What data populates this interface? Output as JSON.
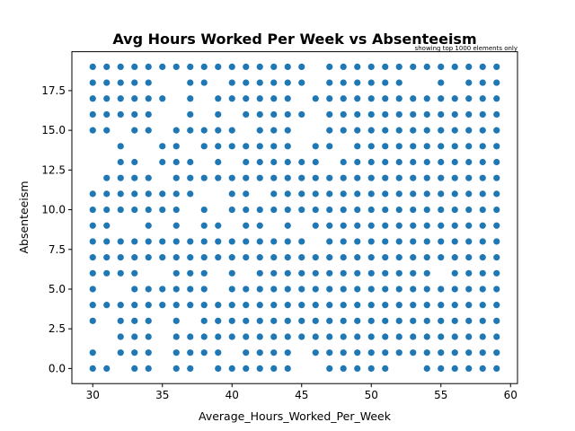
{
  "chart_data": {
    "type": "scatter",
    "title": "Avg Hours Worked Per Week vs Absenteeism",
    "annotation": "showing top 1000 elements only",
    "xlabel": "Average_Hours_Worked_Per_Week",
    "ylabel": "Absenteeism",
    "xlim": [
      28.5,
      60.5
    ],
    "ylim": [
      -0.95,
      19.95
    ],
    "xticks": [
      30,
      35,
      40,
      45,
      50,
      55,
      60
    ],
    "xtick_labels": [
      "30",
      "35",
      "40",
      "45",
      "50",
      "55",
      "60"
    ],
    "yticks": [
      0,
      2.5,
      5,
      7.5,
      10,
      12.5,
      15,
      17.5
    ],
    "ytick_labels": [
      "0.0",
      "2.5",
      "5.0",
      "7.5",
      "10.0",
      "12.5",
      "15.0",
      "17.5"
    ],
    "grid": false,
    "marker_color": "#1f77b4",
    "series": [
      {
        "points_by_hour": {
          "30": [
            0,
            1,
            3,
            4,
            5,
            6,
            7,
            8,
            9,
            10,
            11,
            15,
            16,
            17,
            18,
            19
          ],
          "31": [
            0,
            4,
            6,
            7,
            8,
            9,
            10,
            11,
            12,
            15,
            16,
            17,
            18,
            19
          ],
          "32": [
            1,
            2,
            3,
            4,
            6,
            7,
            8,
            10,
            11,
            12,
            13,
            14,
            16,
            17,
            18,
            19
          ],
          "33": [
            0,
            1,
            2,
            3,
            4,
            5,
            6,
            7,
            8,
            10,
            11,
            12,
            13,
            15,
            16,
            17,
            18,
            19
          ],
          "34": [
            0,
            1,
            2,
            3,
            4,
            5,
            7,
            8,
            9,
            10,
            11,
            12,
            15,
            16,
            17,
            18,
            19
          ],
          "35": [
            4,
            5,
            7,
            8,
            10,
            11,
            13,
            14,
            17,
            19
          ],
          "36": [
            0,
            1,
            2,
            3,
            4,
            5,
            6,
            7,
            8,
            9,
            10,
            11,
            12,
            13,
            14,
            15,
            19
          ],
          "37": [
            0,
            1,
            2,
            4,
            5,
            6,
            7,
            8,
            11,
            12,
            13,
            15,
            16,
            17,
            18,
            19
          ],
          "38": [
            1,
            2,
            3,
            4,
            5,
            6,
            7,
            8,
            9,
            10,
            12,
            14,
            15,
            18,
            19
          ],
          "39": [
            0,
            1,
            2,
            3,
            4,
            7,
            8,
            9,
            12,
            13,
            14,
            15,
            16,
            17,
            19
          ],
          "40": [
            0,
            2,
            3,
            4,
            5,
            6,
            7,
            8,
            10,
            11,
            12,
            14,
            15,
            17,
            18,
            19
          ],
          "41": [
            0,
            1,
            2,
            3,
            4,
            5,
            7,
            8,
            9,
            10,
            11,
            12,
            13,
            14,
            16,
            17,
            18,
            19
          ],
          "42": [
            0,
            1,
            2,
            3,
            4,
            5,
            6,
            7,
            8,
            9,
            10,
            12,
            13,
            14,
            15,
            16,
            17,
            18,
            19
          ],
          "43": [
            0,
            1,
            2,
            3,
            4,
            5,
            6,
            7,
            8,
            10,
            11,
            12,
            13,
            14,
            15,
            16,
            17,
            18,
            19
          ],
          "44": [
            0,
            1,
            2,
            3,
            4,
            5,
            6,
            7,
            8,
            9,
            10,
            11,
            12,
            13,
            14,
            15,
            16,
            17,
            18,
            19
          ],
          "45": [
            2,
            3,
            4,
            5,
            6,
            7,
            8,
            10,
            11,
            12,
            13,
            16,
            18,
            19
          ],
          "46": [
            1,
            2,
            3,
            4,
            5,
            6,
            7,
            9,
            10,
            11,
            12,
            13,
            14,
            17
          ],
          "47": [
            0,
            1,
            2,
            3,
            4,
            5,
            6,
            7,
            8,
            9,
            10,
            11,
            12,
            14,
            15,
            16,
            17,
            18,
            19
          ],
          "48": [
            0,
            1,
            2,
            3,
            4,
            5,
            6,
            7,
            8,
            9,
            10,
            11,
            12,
            13,
            15,
            16,
            17,
            18,
            19
          ],
          "49": [
            0,
            1,
            2,
            3,
            4,
            5,
            6,
            7,
            8,
            9,
            10,
            11,
            12,
            13,
            14,
            15,
            16,
            17,
            18,
            19
          ],
          "50": [
            0,
            1,
            2,
            3,
            4,
            5,
            6,
            7,
            8,
            9,
            10,
            11,
            12,
            13,
            14,
            15,
            16,
            17,
            18,
            19
          ],
          "51": [
            0,
            1,
            2,
            3,
            4,
            5,
            6,
            7,
            8,
            9,
            10,
            11,
            12,
            13,
            14,
            15,
            16,
            17,
            18,
            19
          ],
          "52": [
            1,
            2,
            3,
            4,
            5,
            6,
            7,
            8,
            9,
            10,
            11,
            12,
            13,
            14,
            15,
            16,
            17,
            18,
            19
          ],
          "53": [
            1,
            2,
            3,
            4,
            5,
            6,
            7,
            8,
            9,
            10,
            11,
            12,
            13,
            14,
            15,
            16,
            17,
            19
          ],
          "54": [
            0,
            1,
            2,
            3,
            4,
            5,
            6,
            7,
            8,
            9,
            10,
            11,
            12,
            13,
            14,
            15,
            16,
            17,
            19
          ],
          "55": [
            0,
            1,
            2,
            3,
            4,
            5,
            7,
            8,
            9,
            10,
            11,
            12,
            13,
            14,
            15,
            16,
            17,
            18,
            19
          ],
          "56": [
            0,
            1,
            2,
            3,
            4,
            5,
            6,
            7,
            8,
            9,
            10,
            11,
            12,
            13,
            14,
            15,
            16,
            17,
            19
          ],
          "57": [
            0,
            1,
            2,
            3,
            4,
            5,
            6,
            7,
            8,
            9,
            10,
            11,
            12,
            13,
            14,
            15,
            16,
            17,
            18,
            19
          ],
          "58": [
            0,
            1,
            2,
            3,
            4,
            5,
            6,
            7,
            8,
            9,
            10,
            11,
            12,
            13,
            14,
            15,
            16,
            17,
            18,
            19
          ],
          "59": [
            0,
            1,
            2,
            3,
            4,
            5,
            6,
            7,
            8,
            9,
            10,
            11,
            12,
            13,
            14,
            15,
            16,
            17,
            18,
            19
          ]
        }
      }
    ]
  }
}
